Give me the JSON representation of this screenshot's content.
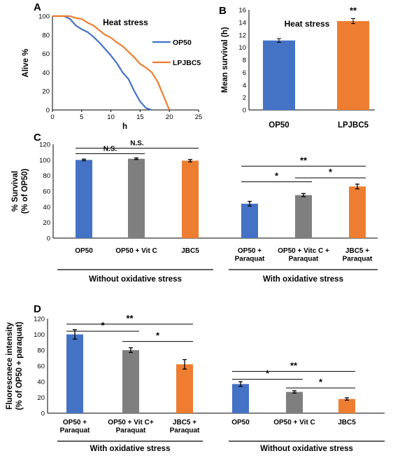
{
  "colors": {
    "blue": "#4472C4",
    "orange": "#ED7D31",
    "gray": "#7F7F7F"
  },
  "chart_data": [
    {
      "panel": "A",
      "type": "line",
      "title": "Heat stress",
      "xlabel": "h",
      "ylabel": "Alive %",
      "xlim": [
        0,
        25
      ],
      "ylim": [
        0,
        100
      ],
      "xticks": [
        "0",
        "5",
        "10",
        "15",
        "20",
        "25"
      ],
      "yticks": [
        "0",
        "20",
        "40",
        "60",
        "80",
        "100"
      ],
      "legend_position": "right",
      "series": [
        {
          "name": "OP50",
          "color": "#4472C4",
          "x": [
            0,
            2,
            3,
            4,
            5,
            6,
            7,
            8,
            9,
            10,
            11,
            12,
            13,
            14,
            15,
            16,
            17
          ],
          "values": [
            100,
            100,
            97,
            90,
            86,
            83,
            78,
            72,
            65,
            58,
            50,
            40,
            33,
            20,
            9,
            2,
            0
          ]
        },
        {
          "name": "LPJBC5",
          "color": "#ED7D31",
          "x": [
            0,
            2,
            3,
            4,
            5,
            6,
            7,
            8,
            9,
            10,
            11,
            12,
            13,
            14,
            15,
            16,
            17,
            18,
            19,
            20
          ],
          "values": [
            100,
            100,
            100,
            98,
            97,
            93,
            90,
            85,
            80,
            77,
            72,
            68,
            62,
            56,
            49,
            45,
            40,
            30,
            15,
            0
          ]
        }
      ]
    },
    {
      "panel": "B",
      "type": "bar",
      "title": "Heat stress",
      "ylabel": "Mean survival (h)",
      "ylim": [
        0,
        16
      ],
      "yticks": [
        "0",
        "2",
        "4",
        "6",
        "8",
        "10",
        "12",
        "14",
        "16"
      ],
      "categories": [
        "OP50",
        "LPJBC5"
      ],
      "values": [
        11.1,
        14.2
      ],
      "errors": [
        0.3,
        0.4
      ],
      "colors": [
        "#4472C4",
        "#ED7D31"
      ],
      "annotations": [
        {
          "label": "**",
          "bar": 1
        }
      ]
    },
    {
      "panel": "C",
      "type": "bar",
      "ylabel_line1": "% Survival",
      "ylabel_line2": "(% of OP50)",
      "ylim": [
        0,
        120
      ],
      "yticks": [
        "0",
        "20",
        "40",
        "60",
        "80",
        "100",
        "120"
      ],
      "categories": [
        [
          "OP50"
        ],
        [
          "OP50 + Vit C"
        ],
        [
          "JBC5"
        ],
        [
          "OP50 +",
          "Paraquat"
        ],
        [
          "OP50 + Vitc C +",
          "Paraquat"
        ],
        [
          "JBC5 +",
          "Paraquat"
        ]
      ],
      "values": [
        100,
        101.5,
        99,
        44,
        55,
        66
      ],
      "errors": [
        1,
        1,
        1.5,
        3,
        2,
        3
      ],
      "colors": [
        "#4472C4",
        "#7F7F7F",
        "#ED7D31",
        "#4472C4",
        "#7F7F7F",
        "#ED7D31"
      ],
      "groups": [
        {
          "label": "Without oxidative stress",
          "from": 0,
          "to": 2
        },
        {
          "label": "With oxidative stress",
          "from": 3,
          "to": 5
        }
      ],
      "brackets": [
        {
          "label": "N.S.",
          "from": 0,
          "to": 1,
          "level": 108
        },
        {
          "label": "N.S.",
          "from": 0,
          "to": 2,
          "level": 115
        },
        {
          "label": "**",
          "from": 3,
          "to": 5,
          "level": 92
        },
        {
          "label": "*",
          "from": 3,
          "to": 4,
          "level": 72
        },
        {
          "label": "*",
          "from": 4,
          "to": 5,
          "level": 77
        }
      ]
    },
    {
      "panel": "D",
      "type": "bar",
      "ylabel_line1": "Fluorescnece intensity",
      "ylabel_line2": "(% of OP50 + paraquat)",
      "ylim": [
        0,
        120
      ],
      "yticks": [
        "0",
        "20",
        "40",
        "60",
        "80",
        "100",
        "120"
      ],
      "categories": [
        [
          "OP50 +",
          "Paraquat"
        ],
        [
          "OP50 + Vit C+",
          "Paraquat"
        ],
        [
          "JBC5 +",
          "Paraquat"
        ],
        [
          "OP50"
        ],
        [
          "OP50 + Vit C"
        ],
        [
          "JBC5"
        ]
      ],
      "values": [
        100,
        80,
        62,
        37,
        27,
        18
      ],
      "errors": [
        6,
        3,
        6,
        3,
        1.5,
        1.5
      ],
      "colors": [
        "#4472C4",
        "#7F7F7F",
        "#ED7D31",
        "#4472C4",
        "#7F7F7F",
        "#ED7D31"
      ],
      "groups": [
        {
          "label": "With oxidative stress",
          "from": 0,
          "to": 2
        },
        {
          "label": "Without oxidative stress",
          "from": 3,
          "to": 5
        }
      ],
      "brackets": [
        {
          "label": "**",
          "from": 0,
          "to": 2,
          "level": 113
        },
        {
          "label": "*",
          "from": 0,
          "to": 1,
          "level": 104
        },
        {
          "label": "*",
          "from": 1,
          "to": 2,
          "level": 91
        },
        {
          "label": "**",
          "from": 3,
          "to": 5,
          "level": 53
        },
        {
          "label": "*",
          "from": 3,
          "to": 4,
          "level": 43
        },
        {
          "label": "*",
          "from": 4,
          "to": 5,
          "level": 32
        }
      ]
    }
  ]
}
